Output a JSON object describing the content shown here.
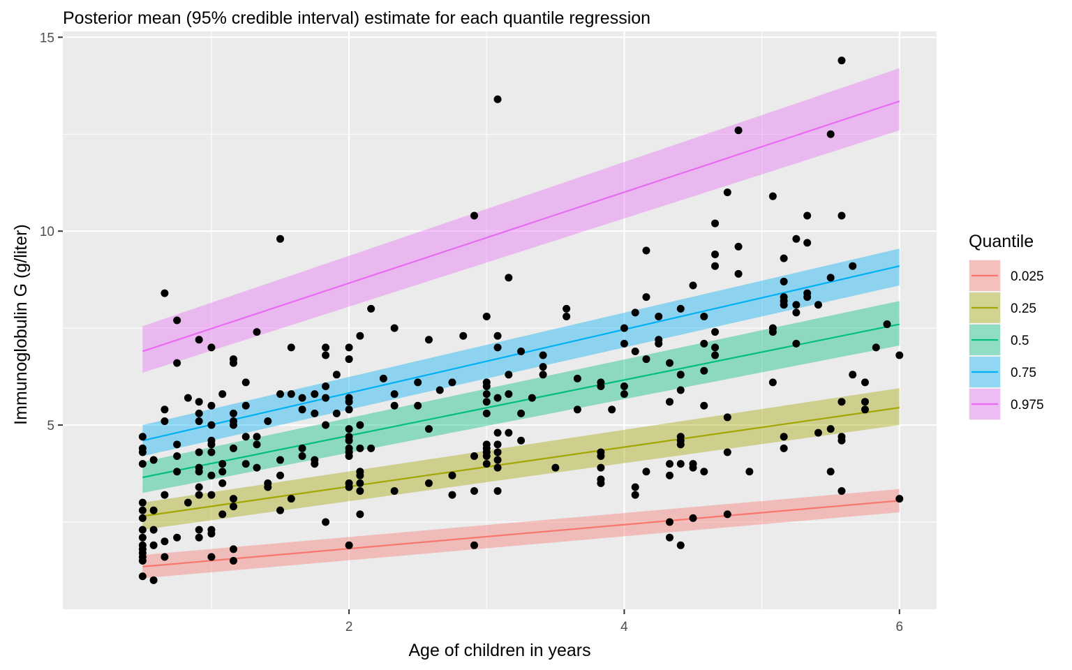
{
  "chart_data": {
    "type": "scatter",
    "title": "Posterior mean (95% credible interval) estimate for each quantile regression",
    "xlabel": "Age of children in years",
    "ylabel": "Immunoglobulin G (g/liter)",
    "xlim": [
      -0.08,
      6.27
    ],
    "ylim": [
      0.25,
      15.15
    ],
    "xticks": [
      2,
      4,
      6
    ],
    "yticks": [
      5,
      10,
      15
    ],
    "grid": true,
    "legend_title": "Quantile",
    "legend_position": "right",
    "series": [
      {
        "name": "0.025",
        "color": "#F8766D",
        "x": [
          0.5,
          6.0
        ],
        "y": [
          1.35,
          3.05
        ],
        "lower": [
          1.05,
          2.75
        ],
        "upper": [
          1.65,
          3.35
        ]
      },
      {
        "name": "0.25",
        "color": "#A3A500",
        "x": [
          0.5,
          6.0
        ],
        "y": [
          2.65,
          5.45
        ],
        "lower": [
          2.3,
          5.0
        ],
        "upper": [
          3.0,
          5.95
        ]
      },
      {
        "name": "0.5",
        "color": "#00BF7D",
        "x": [
          0.5,
          6.0
        ],
        "y": [
          3.65,
          7.6
        ],
        "lower": [
          3.25,
          7.05
        ],
        "upper": [
          4.05,
          8.2
        ]
      },
      {
        "name": "0.75",
        "color": "#00B0F6",
        "x": [
          0.5,
          6.0
        ],
        "y": [
          4.6,
          9.1
        ],
        "lower": [
          4.2,
          8.6
        ],
        "upper": [
          5.0,
          9.55
        ]
      },
      {
        "name": "0.975",
        "color": "#E76BF3",
        "x": [
          0.5,
          6.0
        ],
        "y": [
          6.9,
          13.35
        ],
        "lower": [
          6.35,
          12.6
        ],
        "upper": [
          7.55,
          14.2
        ]
      }
    ],
    "points": [
      [
        0.5,
        4.7
      ],
      [
        0.5,
        4.4
      ],
      [
        0.5,
        4.3
      ],
      [
        0.5,
        4.0
      ],
      [
        0.5,
        3.0
      ],
      [
        0.5,
        2.8
      ],
      [
        0.5,
        2.6
      ],
      [
        0.5,
        2.3
      ],
      [
        0.5,
        2.1
      ],
      [
        0.5,
        1.9
      ],
      [
        0.5,
        1.8
      ],
      [
        0.5,
        1.7
      ],
      [
        0.5,
        1.6
      ],
      [
        0.5,
        1.5
      ],
      [
        0.5,
        1.1
      ],
      [
        0.58,
        4.1
      ],
      [
        0.58,
        2.8
      ],
      [
        0.58,
        2.3
      ],
      [
        0.58,
        1.9
      ],
      [
        0.58,
        1.0
      ],
      [
        0.66,
        8.4
      ],
      [
        0.66,
        5.4
      ],
      [
        0.66,
        5.1
      ],
      [
        0.66,
        3.2
      ],
      [
        0.66,
        2.0
      ],
      [
        0.66,
        1.6
      ],
      [
        0.75,
        7.7
      ],
      [
        0.75,
        6.6
      ],
      [
        0.75,
        4.5
      ],
      [
        0.75,
        4.2
      ],
      [
        0.75,
        3.8
      ],
      [
        0.75,
        2.1
      ],
      [
        0.83,
        5.7
      ],
      [
        0.83,
        3.0
      ],
      [
        0.91,
        7.2
      ],
      [
        0.91,
        5.6
      ],
      [
        0.91,
        5.3
      ],
      [
        0.91,
        5.1
      ],
      [
        0.91,
        4.3
      ],
      [
        0.91,
        3.9
      ],
      [
        0.91,
        3.8
      ],
      [
        0.91,
        3.4
      ],
      [
        0.91,
        3.2
      ],
      [
        0.91,
        2.3
      ],
      [
        0.91,
        2.1
      ],
      [
        1.0,
        7.0
      ],
      [
        1.0,
        5.5
      ],
      [
        1.0,
        5.0
      ],
      [
        1.0,
        4.6
      ],
      [
        1.0,
        4.5
      ],
      [
        1.0,
        4.3
      ],
      [
        1.0,
        3.7
      ],
      [
        1.0,
        3.2
      ],
      [
        1.0,
        2.3
      ],
      [
        1.0,
        2.2
      ],
      [
        1.0,
        1.6
      ],
      [
        1.08,
        5.8
      ],
      [
        1.08,
        4.0
      ],
      [
        1.08,
        3.8
      ],
      [
        1.08,
        3.5
      ],
      [
        1.08,
        2.7
      ],
      [
        1.16,
        6.7
      ],
      [
        1.16,
        6.6
      ],
      [
        1.16,
        5.3
      ],
      [
        1.16,
        5.1
      ],
      [
        1.16,
        5.0
      ],
      [
        1.16,
        4.4
      ],
      [
        1.16,
        3.1
      ],
      [
        1.16,
        2.9
      ],
      [
        1.16,
        1.8
      ],
      [
        1.16,
        1.5
      ],
      [
        1.25,
        6.1
      ],
      [
        1.25,
        5.5
      ],
      [
        1.25,
        4.7
      ],
      [
        1.25,
        4.0
      ],
      [
        1.33,
        7.4
      ],
      [
        1.33,
        4.7
      ],
      [
        1.33,
        4.5
      ],
      [
        1.33,
        3.9
      ],
      [
        1.41,
        5.1
      ],
      [
        1.41,
        3.5
      ],
      [
        1.41,
        3.4
      ],
      [
        1.5,
        9.8
      ],
      [
        1.5,
        5.8
      ],
      [
        1.5,
        4.1
      ],
      [
        1.5,
        3.7
      ],
      [
        1.5,
        2.8
      ],
      [
        1.58,
        7.0
      ],
      [
        1.58,
        5.8
      ],
      [
        1.58,
        3.1
      ],
      [
        1.66,
        5.7
      ],
      [
        1.66,
        5.4
      ],
      [
        1.66,
        4.4
      ],
      [
        1.66,
        4.2
      ],
      [
        1.75,
        5.8
      ],
      [
        1.75,
        5.3
      ],
      [
        1.75,
        4.1
      ],
      [
        1.75,
        4.0
      ],
      [
        1.83,
        7.0
      ],
      [
        1.83,
        6.8
      ],
      [
        1.83,
        6.0
      ],
      [
        1.83,
        5.7
      ],
      [
        1.83,
        5.0
      ],
      [
        1.83,
        2.5
      ],
      [
        1.91,
        6.3
      ],
      [
        1.91,
        5.3
      ],
      [
        2.0,
        7.0
      ],
      [
        2.0,
        6.7
      ],
      [
        2.0,
        5.7
      ],
      [
        2.0,
        5.6
      ],
      [
        2.0,
        5.4
      ],
      [
        2.0,
        4.9
      ],
      [
        2.0,
        4.7
      ],
      [
        2.0,
        4.6
      ],
      [
        2.0,
        4.4
      ],
      [
        2.0,
        4.3
      ],
      [
        2.0,
        4.2
      ],
      [
        2.0,
        3.5
      ],
      [
        2.0,
        3.4
      ],
      [
        2.0,
        1.9
      ],
      [
        2.08,
        7.3
      ],
      [
        2.08,
        5.0
      ],
      [
        2.08,
        4.4
      ],
      [
        2.08,
        3.8
      ],
      [
        2.08,
        3.7
      ],
      [
        2.08,
        3.5
      ],
      [
        2.08,
        3.3
      ],
      [
        2.08,
        2.7
      ],
      [
        2.16,
        8.0
      ],
      [
        2.16,
        4.4
      ],
      [
        2.25,
        6.2
      ],
      [
        2.33,
        7.5
      ],
      [
        2.33,
        5.8
      ],
      [
        2.33,
        5.5
      ],
      [
        2.33,
        3.3
      ],
      [
        2.5,
        6.1
      ],
      [
        2.5,
        5.5
      ],
      [
        2.58,
        7.2
      ],
      [
        2.58,
        4.9
      ],
      [
        2.58,
        3.5
      ],
      [
        2.66,
        5.9
      ],
      [
        2.75,
        6.1
      ],
      [
        2.75,
        3.7
      ],
      [
        2.75,
        3.2
      ],
      [
        2.83,
        7.3
      ],
      [
        2.91,
        10.4
      ],
      [
        2.91,
        4.2
      ],
      [
        2.91,
        3.3
      ],
      [
        2.91,
        1.9
      ],
      [
        3.0,
        7.8
      ],
      [
        3.0,
        6.1
      ],
      [
        3.0,
        6.0
      ],
      [
        3.0,
        5.8
      ],
      [
        3.0,
        5.6
      ],
      [
        3.0,
        5.3
      ],
      [
        3.0,
        4.5
      ],
      [
        3.0,
        4.4
      ],
      [
        3.0,
        4.3
      ],
      [
        3.0,
        4.2
      ],
      [
        3.0,
        4.0
      ],
      [
        3.08,
        13.4
      ],
      [
        3.08,
        7.3
      ],
      [
        3.08,
        7.0
      ],
      [
        3.08,
        5.7
      ],
      [
        3.08,
        4.8
      ],
      [
        3.08,
        4.5
      ],
      [
        3.08,
        4.3
      ],
      [
        3.08,
        4.1
      ],
      [
        3.08,
        3.9
      ],
      [
        3.08,
        3.3
      ],
      [
        3.16,
        8.8
      ],
      [
        3.16,
        6.3
      ],
      [
        3.16,
        5.8
      ],
      [
        3.16,
        4.8
      ],
      [
        3.25,
        6.9
      ],
      [
        3.25,
        5.3
      ],
      [
        3.25,
        4.6
      ],
      [
        3.33,
        5.7
      ],
      [
        3.41,
        6.8
      ],
      [
        3.41,
        6.5
      ],
      [
        3.41,
        6.3
      ],
      [
        3.5,
        3.9
      ],
      [
        3.58,
        8.0
      ],
      [
        3.58,
        7.8
      ],
      [
        3.66,
        6.2
      ],
      [
        3.66,
        5.4
      ],
      [
        3.83,
        6.1
      ],
      [
        3.83,
        6.0
      ],
      [
        3.83,
        4.3
      ],
      [
        3.83,
        4.2
      ],
      [
        3.83,
        3.9
      ],
      [
        3.83,
        3.6
      ],
      [
        3.83,
        3.5
      ],
      [
        3.91,
        5.4
      ],
      [
        4.0,
        7.5
      ],
      [
        4.0,
        7.1
      ],
      [
        4.0,
        6.0
      ],
      [
        4.0,
        5.8
      ],
      [
        4.08,
        7.9
      ],
      [
        4.08,
        6.9
      ],
      [
        4.08,
        3.4
      ],
      [
        4.08,
        3.2
      ],
      [
        4.16,
        9.5
      ],
      [
        4.16,
        8.3
      ],
      [
        4.16,
        6.7
      ],
      [
        4.16,
        3.8
      ],
      [
        4.25,
        7.8
      ],
      [
        4.25,
        7.2
      ],
      [
        4.25,
        7.1
      ],
      [
        4.33,
        6.6
      ],
      [
        4.33,
        5.6
      ],
      [
        4.33,
        4.0
      ],
      [
        4.33,
        3.7
      ],
      [
        4.33,
        2.5
      ],
      [
        4.33,
        2.1
      ],
      [
        4.41,
        8.0
      ],
      [
        4.41,
        6.3
      ],
      [
        4.41,
        5.9
      ],
      [
        4.41,
        4.7
      ],
      [
        4.41,
        4.6
      ],
      [
        4.41,
        4.5
      ],
      [
        4.41,
        4.0
      ],
      [
        4.41,
        1.9
      ],
      [
        4.5,
        8.6
      ],
      [
        4.5,
        4.0
      ],
      [
        4.5,
        3.9
      ],
      [
        4.5,
        2.6
      ],
      [
        4.58,
        7.8
      ],
      [
        4.58,
        7.1
      ],
      [
        4.58,
        6.4
      ],
      [
        4.58,
        5.5
      ],
      [
        4.58,
        3.8
      ],
      [
        4.66,
        10.2
      ],
      [
        4.66,
        9.4
      ],
      [
        4.66,
        9.1
      ],
      [
        4.66,
        7.4
      ],
      [
        4.66,
        7.0
      ],
      [
        4.66,
        6.8
      ],
      [
        4.75,
        11.0
      ],
      [
        4.75,
        5.2
      ],
      [
        4.75,
        4.3
      ],
      [
        4.75,
        2.7
      ],
      [
        4.83,
        12.6
      ],
      [
        4.83,
        9.6
      ],
      [
        4.83,
        8.9
      ],
      [
        4.91,
        3.8
      ],
      [
        5.08,
        10.9
      ],
      [
        5.08,
        7.5
      ],
      [
        5.08,
        7.4
      ],
      [
        5.08,
        6.1
      ],
      [
        5.16,
        9.3
      ],
      [
        5.16,
        8.7
      ],
      [
        5.16,
        8.3
      ],
      [
        5.16,
        8.2
      ],
      [
        5.16,
        8.1
      ],
      [
        5.16,
        4.7
      ],
      [
        5.16,
        4.4
      ],
      [
        5.25,
        9.8
      ],
      [
        5.25,
        8.1
      ],
      [
        5.25,
        7.9
      ],
      [
        5.25,
        7.1
      ],
      [
        5.33,
        10.4
      ],
      [
        5.33,
        9.7
      ],
      [
        5.33,
        8.4
      ],
      [
        5.33,
        8.3
      ],
      [
        5.41,
        8.1
      ],
      [
        5.41,
        4.8
      ],
      [
        5.5,
        12.5
      ],
      [
        5.5,
        8.8
      ],
      [
        5.5,
        4.9
      ],
      [
        5.5,
        3.8
      ],
      [
        5.58,
        14.4
      ],
      [
        5.58,
        10.4
      ],
      [
        5.58,
        5.6
      ],
      [
        5.58,
        4.7
      ],
      [
        5.58,
        4.6
      ],
      [
        5.58,
        3.3
      ],
      [
        5.66,
        9.1
      ],
      [
        5.66,
        6.3
      ],
      [
        5.75,
        6.1
      ],
      [
        5.75,
        5.6
      ],
      [
        5.75,
        5.4
      ],
      [
        5.83,
        7.0
      ],
      [
        5.91,
        7.6
      ],
      [
        6.0,
        6.8
      ],
      [
        6.0,
        3.1
      ]
    ]
  }
}
